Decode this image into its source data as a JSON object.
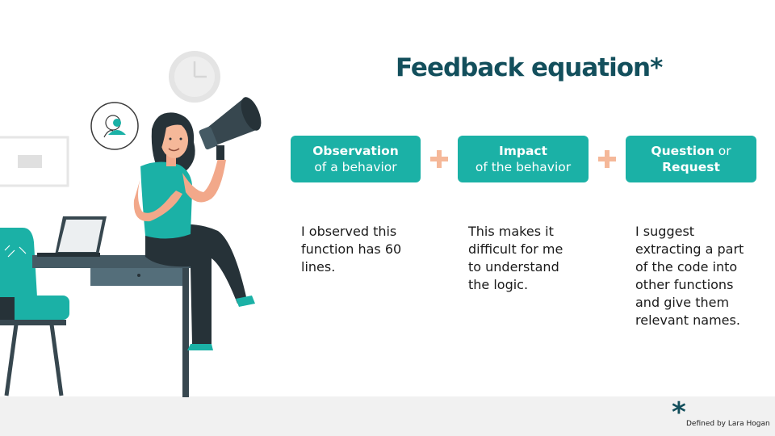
{
  "title": "Feedback equation*",
  "cards": [
    {
      "line1_bold": "Observation",
      "line1_normal": "",
      "line2_bold": "",
      "line2_normal": "of a behavior"
    },
    {
      "line1_bold": "Impact",
      "line1_normal": "",
      "line2_bold": "",
      "line2_normal": "of the behavior"
    },
    {
      "line1_bold": "Question",
      "line1_normal": " or",
      "line2_bold": "Request",
      "line2_normal": ""
    }
  ],
  "examples": [
    "I observed this function has 60 lines.",
    "This makes it difficult for me to understand the logic.",
    "I suggest extracting a part of the code into other functions and give them relevant names."
  ],
  "footnote": {
    "mark": "*",
    "text": "Defined by Lara Hogan"
  },
  "colors": {
    "title": "#134f5c",
    "card": "#1bb1a6",
    "plus": "#f5b899",
    "footer": "#f1f1f1"
  },
  "icons": [
    "wall-clock-icon",
    "person-speech-bubble-icon",
    "megaphone-icon",
    "laptop-icon",
    "chair-icon"
  ]
}
